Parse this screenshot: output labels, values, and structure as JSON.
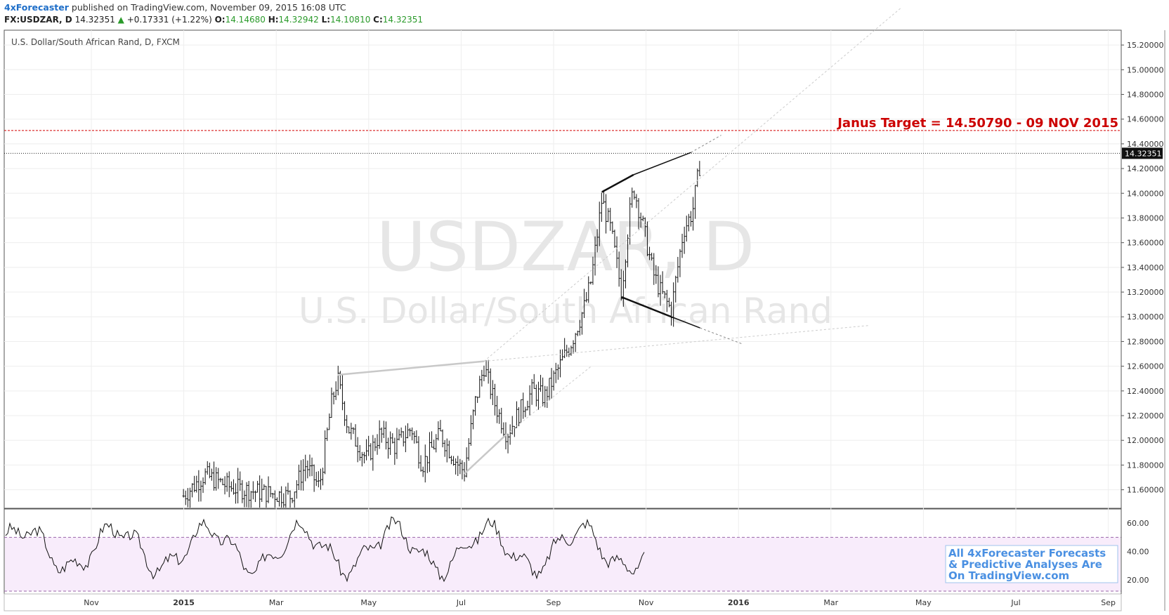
{
  "header": {
    "author": "4xForecaster",
    "published_text": "published on TradingView.com, November 09, 2015 16:08 UTC"
  },
  "ohlc": {
    "symbol": "FX:USDZAR, D",
    "last": "14.32351",
    "arrow": "▲",
    "change": "+0.17331 (+1.22%)",
    "o_label": "O:",
    "o": "14.14680",
    "h_label": "H:",
    "h": "14.32942",
    "l_label": "L:",
    "l": "14.10810",
    "c_label": "C:",
    "c": "14.32351"
  },
  "chart_data": {
    "type": "bar",
    "series_title": "U.S. Dollar/South African Rand, D, FXCM",
    "watermark_symbol": "USDZAR, D",
    "watermark_name": "U.S. Dollar/South African Rand",
    "annotation": "Janus Target = 14.50790 - 09 NOV 2015",
    "target_level": 14.5079,
    "last_price": 14.32351,
    "last_price_label": "14.32351",
    "y_ticks": [
      "15.20000",
      "15.00000",
      "14.80000",
      "14.60000",
      "14.40000",
      "14.20000",
      "14.00000",
      "13.80000",
      "13.60000",
      "13.40000",
      "13.20000",
      "13.00000",
      "12.80000",
      "12.60000",
      "12.40000",
      "12.20000",
      "12.00000",
      "11.80000",
      "11.60000"
    ],
    "ylim": [
      11.45,
      15.32
    ],
    "x_labels": [
      "Nov",
      "2015",
      "Mar",
      "May",
      "Jul",
      "Sep",
      "Nov",
      "2016",
      "Mar",
      "May",
      "Jul",
      "Sep"
    ],
    "approx_closes": [
      {
        "date": "2014-12-01",
        "value": 11.55
      },
      {
        "date": "2014-12-15",
        "value": 11.72
      },
      {
        "date": "2015-01-01",
        "value": 11.62
      },
      {
        "date": "2015-01-20",
        "value": 11.58
      },
      {
        "date": "2015-02-10",
        "value": 11.55
      },
      {
        "date": "2015-02-20",
        "value": 11.8
      },
      {
        "date": "2015-03-01",
        "value": 11.62
      },
      {
        "date": "2015-03-09",
        "value": 12.3
      },
      {
        "date": "2015-03-13",
        "value": 12.5
      },
      {
        "date": "2015-03-20",
        "value": 12.1
      },
      {
        "date": "2015-04-01",
        "value": 11.85
      },
      {
        "date": "2015-04-10",
        "value": 12.05
      },
      {
        "date": "2015-04-20",
        "value": 11.95
      },
      {
        "date": "2015-05-01",
        "value": 12.1
      },
      {
        "date": "2015-05-08",
        "value": 11.8
      },
      {
        "date": "2015-05-20",
        "value": 12.05
      },
      {
        "date": "2015-06-01",
        "value": 11.8
      },
      {
        "date": "2015-06-05",
        "value": 11.75
      },
      {
        "date": "2015-06-12",
        "value": 12.3
      },
      {
        "date": "2015-06-18",
        "value": 12.6
      },
      {
        "date": "2015-06-25",
        "value": 12.3
      },
      {
        "date": "2015-07-03",
        "value": 12.05
      },
      {
        "date": "2015-07-10",
        "value": 12.2
      },
      {
        "date": "2015-07-20",
        "value": 12.4
      },
      {
        "date": "2015-07-28",
        "value": 12.35
      },
      {
        "date": "2015-08-05",
        "value": 12.55
      },
      {
        "date": "2015-08-15",
        "value": 12.8
      },
      {
        "date": "2015-08-24",
        "value": 13.1
      },
      {
        "date": "2015-08-28",
        "value": 13.3
      },
      {
        "date": "2015-09-04",
        "value": 13.95
      },
      {
        "date": "2015-09-10",
        "value": 13.7
      },
      {
        "date": "2015-09-17",
        "value": 13.2
      },
      {
        "date": "2015-09-22",
        "value": 13.8
      },
      {
        "date": "2015-09-25",
        "value": 14.05
      },
      {
        "date": "2015-10-01",
        "value": 13.75
      },
      {
        "date": "2015-10-08",
        "value": 13.35
      },
      {
        "date": "2015-10-13",
        "value": 13.2
      },
      {
        "date": "2015-10-20",
        "value": 13.05
      },
      {
        "date": "2015-10-23",
        "value": 13.3
      },
      {
        "date": "2015-10-28",
        "value": 13.7
      },
      {
        "date": "2015-11-03",
        "value": 13.85
      },
      {
        "date": "2015-11-09",
        "value": 14.32
      }
    ],
    "rsi": {
      "ticks": [
        "60.00",
        "40.00",
        "20.00"
      ],
      "ylim": [
        10,
        70
      ],
      "upper_band": 50,
      "lower_band": 12
    },
    "promo_lines": [
      "All 4xForecaster Forecasts",
      "& Predictive Analyses Are",
      "On TradingView.com"
    ]
  },
  "colors": {
    "target_line": "#d40000",
    "annotation_text": "#cc0000",
    "rsi_band_fill": "#f8ecfb",
    "rsi_band_line": "#9966aa",
    "promo_text": "#4a90e2"
  }
}
